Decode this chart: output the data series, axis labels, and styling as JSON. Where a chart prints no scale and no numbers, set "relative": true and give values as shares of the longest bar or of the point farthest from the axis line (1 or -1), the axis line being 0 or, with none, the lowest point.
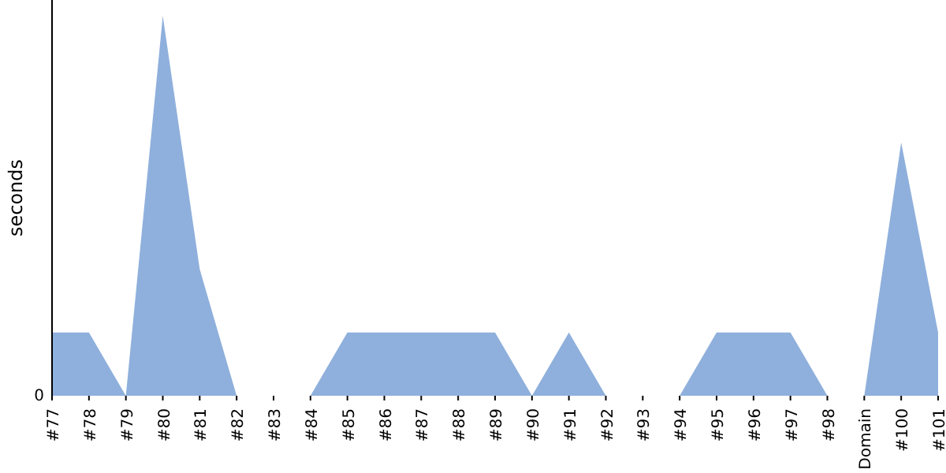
{
  "chart_data": {
    "type": "area",
    "relative": true,
    "ylabel": "seconds",
    "color": "#8fb0dc",
    "categories": [
      "#77",
      "#78",
      "#79",
      "#80",
      "#81",
      "#82",
      "#83",
      "#84",
      "#85",
      "#86",
      "#87",
      "#88",
      "#89",
      "#90",
      "#91",
      "#92",
      "#93",
      "#94",
      "#95",
      "#96",
      "#97",
      "#98",
      "Domain",
      "#100",
      "#101"
    ],
    "values": [
      0.1667,
      0.1667,
      0,
      1,
      0.3333,
      0,
      0,
      0,
      0.1667,
      0.1667,
      0.1667,
      0.1667,
      0.1667,
      0,
      0.1667,
      0,
      0,
      0,
      0.1667,
      0.1667,
      0.1667,
      0,
      0,
      0.6667,
      0.1667
    ],
    "annotations": [
      "0"
    ]
  }
}
